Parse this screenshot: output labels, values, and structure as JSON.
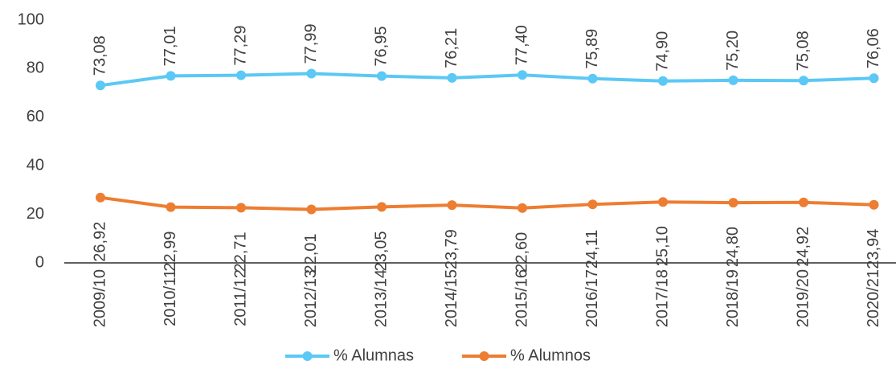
{
  "chart_data": {
    "type": "line",
    "categories": [
      "2009/10",
      "2010/11",
      "2011/12",
      "2012/13",
      "2013/14",
      "2014/15",
      "2015/16",
      "2016/17",
      "2017/18",
      "2018/19",
      "2019/20",
      "2020/21"
    ],
    "series": [
      {
        "name": "% Alumnas",
        "color": "#5bc8f5",
        "values": [
          73.08,
          77.01,
          77.29,
          77.99,
          76.95,
          76.21,
          77.4,
          75.89,
          74.9,
          75.2,
          75.08,
          76.06
        ],
        "value_labels": [
          "73,08",
          "77,01",
          "77,29",
          "77,99",
          "76,95",
          "76,21",
          "77,40",
          "75,89",
          "74,90",
          "75,20",
          "75,08",
          "76,06"
        ]
      },
      {
        "name": "% Alumnos",
        "color": "#ed7d31",
        "values": [
          26.92,
          22.99,
          22.71,
          22.01,
          23.05,
          23.79,
          22.6,
          24.11,
          25.1,
          24.8,
          24.92,
          23.94
        ],
        "value_labels": [
          "26,92",
          "22,99",
          "22,71",
          "22,01",
          "23,05",
          "23,79",
          "22,60",
          "24,11",
          "25,10",
          "24,80",
          "24,92",
          "23,94"
        ]
      }
    ],
    "ylim": [
      0,
      100
    ],
    "yticks": [
      0,
      20,
      40,
      60,
      80,
      100
    ],
    "grid": false,
    "legend": "bottom"
  }
}
